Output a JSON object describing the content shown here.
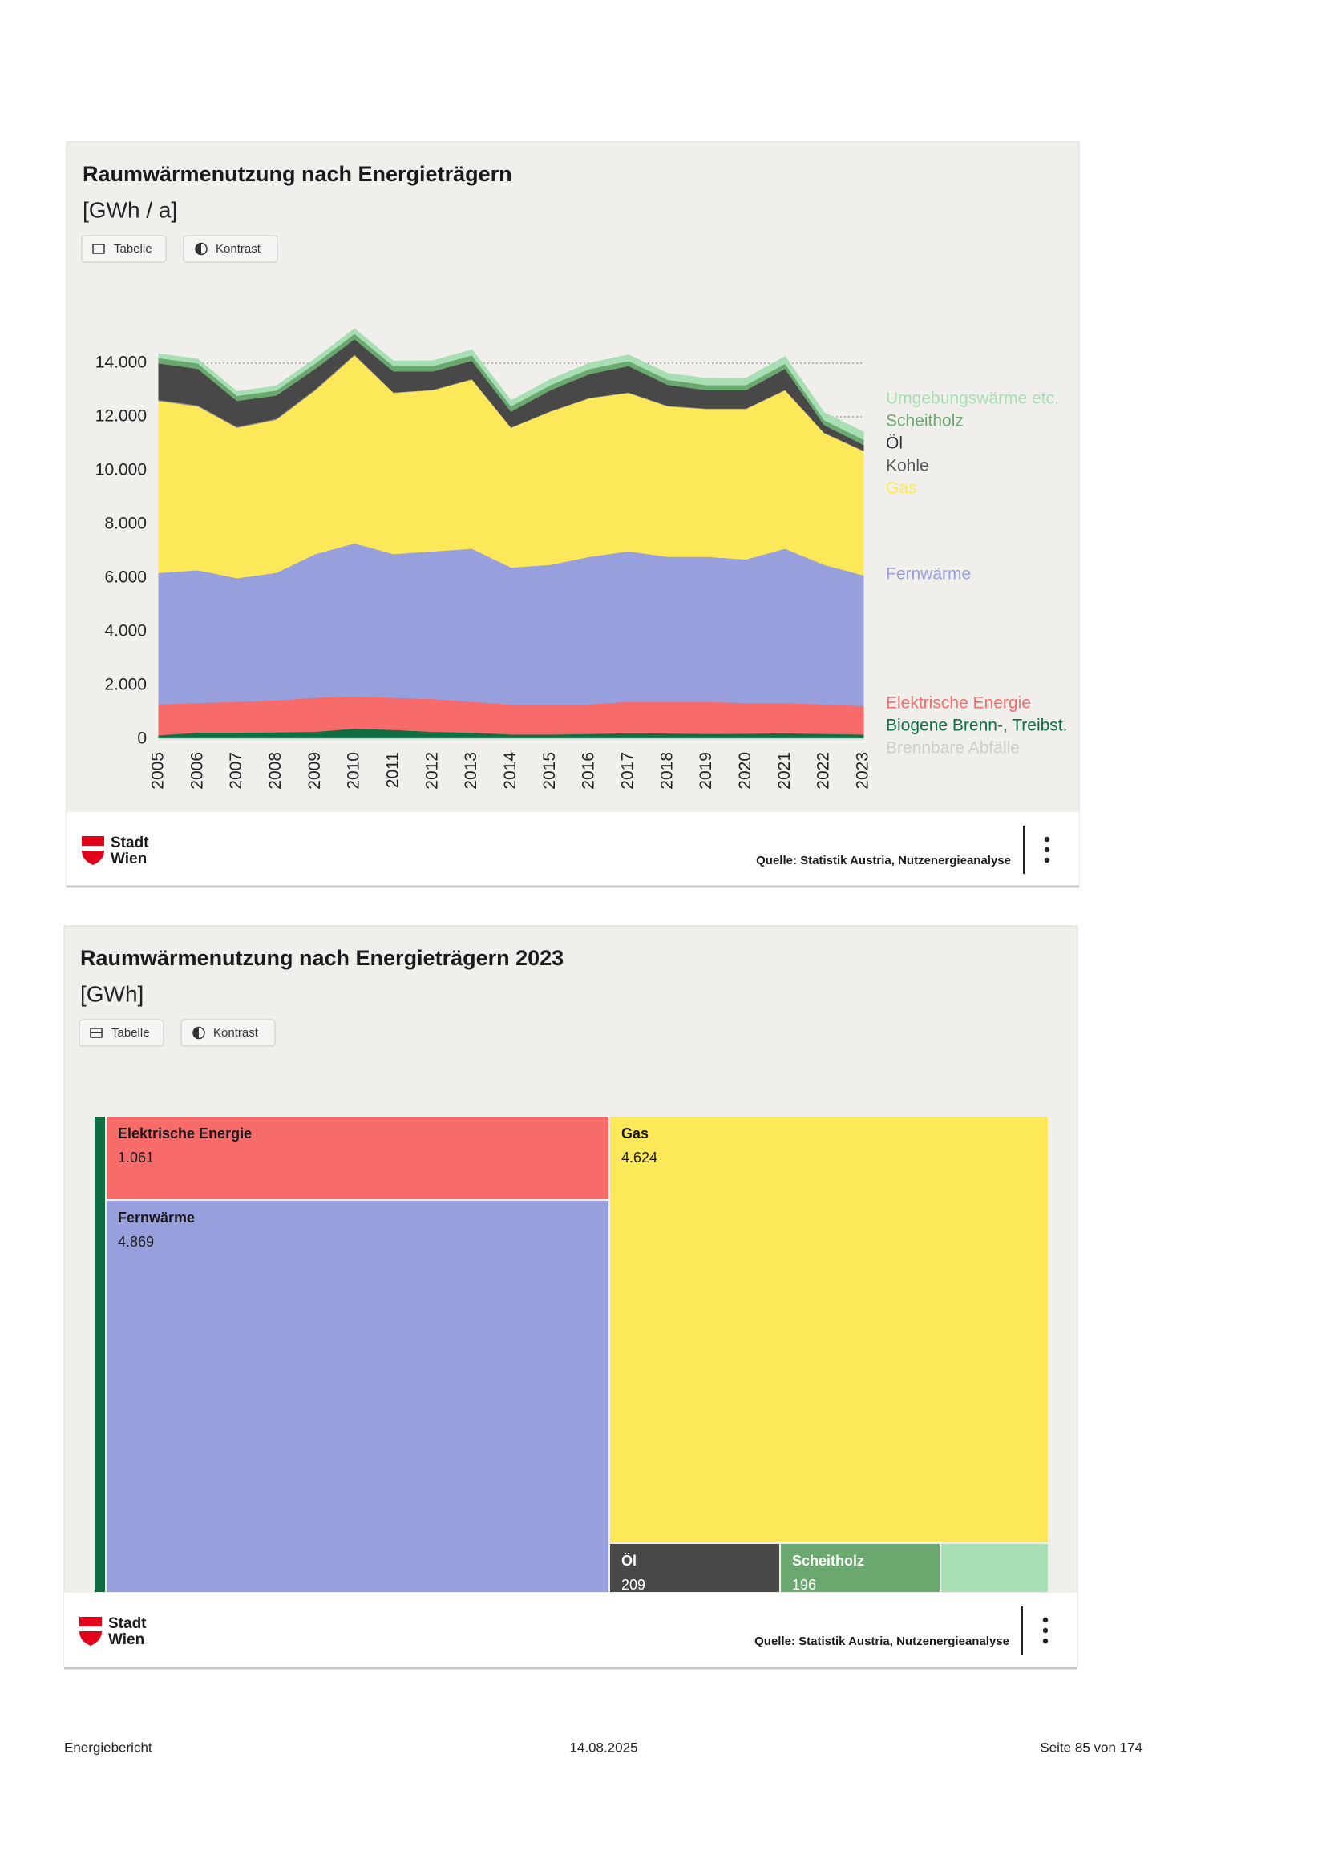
{
  "chart_data": [
    {
      "type": "area",
      "title": "Raumwärmenutzung nach Energieträgern",
      "subtitle": "[GWh / a]",
      "buttons": [
        "Tabelle",
        "Kontrast"
      ],
      "x": [
        2005,
        2006,
        2007,
        2008,
        2009,
        2010,
        2011,
        2012,
        2013,
        2014,
        2015,
        2016,
        2017,
        2018,
        2019,
        2020,
        2021,
        2022,
        2023
      ],
      "xlim": [
        2005,
        2023
      ],
      "ylim": [
        0,
        16000
      ],
      "yticks": [
        0,
        {
          "value": 2000,
          "label": "2.000"
        },
        {
          "value": 4000,
          "label": "4.000"
        },
        {
          "value": 6000,
          "label": "6.000"
        },
        {
          "value": 8000,
          "label": "8.000"
        },
        {
          "value": 10000,
          "label": "10.000"
        },
        {
          "value": 12000,
          "label": "12.000"
        },
        {
          "value": 14000,
          "label": "14.000"
        }
      ],
      "grid": true,
      "stacked": true,
      "series": [
        {
          "name": "Brennbare Abfälle",
          "color": "#cfcdc8",
          "values": [
            50,
            50,
            50,
            50,
            50,
            50,
            50,
            50,
            50,
            50,
            50,
            50,
            50,
            50,
            50,
            50,
            50,
            50,
            50
          ]
        },
        {
          "name": "Biogene Brenn-, Treibst.",
          "color": "#0f6e43",
          "values": [
            100,
            200,
            200,
            210,
            230,
            350,
            300,
            230,
            200,
            130,
            130,
            150,
            180,
            170,
            150,
            160,
            180,
            150,
            130
          ]
        },
        {
          "name": "Elektrische Energie",
          "color": "#f76b6b",
          "values": [
            1150,
            1100,
            1150,
            1190,
            1270,
            1200,
            1200,
            1220,
            1150,
            1120,
            1120,
            1100,
            1170,
            1180,
            1200,
            1140,
            1120,
            1100,
            1061
          ]
        },
        {
          "name": "Fernwärme",
          "color": "#97a0dd",
          "values": [
            4900,
            4950,
            4600,
            4750,
            5350,
            5700,
            5350,
            5500,
            5700,
            5100,
            5200,
            5500,
            5600,
            5400,
            5400,
            5350,
            5750,
            5200,
            4869
          ]
        },
        {
          "name": "Gas",
          "color": "#fde85a",
          "values": [
            6400,
            6100,
            5600,
            5700,
            6100,
            7000,
            6000,
            6000,
            6300,
            5200,
            5700,
            5900,
            5900,
            5600,
            5500,
            5600,
            5900,
            4900,
            4624
          ]
        },
        {
          "name": "Kohle",
          "color": "#8a8a8a",
          "values": [
            40,
            40,
            40,
            40,
            40,
            40,
            20,
            20,
            20,
            20,
            20,
            20,
            20,
            20,
            20,
            20,
            20,
            20,
            20
          ]
        },
        {
          "name": "Öl",
          "color": "#484848",
          "values": [
            1360,
            1360,
            960,
            860,
            760,
            560,
            780,
            680,
            680,
            580,
            780,
            880,
            980,
            780,
            680,
            680,
            780,
            280,
            209
          ]
        },
        {
          "name": "Scheitholz",
          "color": "#6aa86f",
          "values": [
            200,
            200,
            190,
            190,
            200,
            200,
            200,
            200,
            200,
            200,
            190,
            190,
            190,
            190,
            190,
            190,
            190,
            180,
            196
          ]
        },
        {
          "name": "Umgebungswärme etc.",
          "color": "#a8deb4",
          "values": [
            150,
            150,
            150,
            160,
            170,
            180,
            180,
            190,
            200,
            200,
            200,
            210,
            220,
            230,
            240,
            250,
            260,
            270,
            280
          ]
        }
      ],
      "logo": [
        "Stadt",
        "Wien"
      ],
      "source": "Quelle: Statistik Austria, Nutzenergieanalyse"
    },
    {
      "type": "treemap",
      "title": "Raumwärmenutzung nach Energieträgern 2023",
      "subtitle": "[GWh]",
      "buttons": [
        "Tabelle",
        "Kontrast"
      ],
      "categories": [
        null,
        "Elektrische Energie",
        "Fernwärme",
        "Gas",
        "Öl",
        "Scheitholz",
        null
      ],
      "values": [
        130,
        1061,
        4869,
        4624,
        209,
        196,
        280
      ],
      "value_labels": [
        null,
        "1.061",
        "4.869",
        "4.624",
        "209",
        "196",
        null
      ],
      "colors": [
        "#0f6e43",
        "#f76b6b",
        "#97a0dd",
        "#fde85a",
        "#484848",
        "#6aa86f",
        "#a8deb4"
      ],
      "logo": [
        "Stadt",
        "Wien"
      ],
      "source": "Quelle: Statistik Austria, Nutzenergieanalyse"
    }
  ],
  "page_footer": {
    "left": "Energiebericht",
    "center": "14.08.2025",
    "right": "Seite 85 von 174"
  }
}
